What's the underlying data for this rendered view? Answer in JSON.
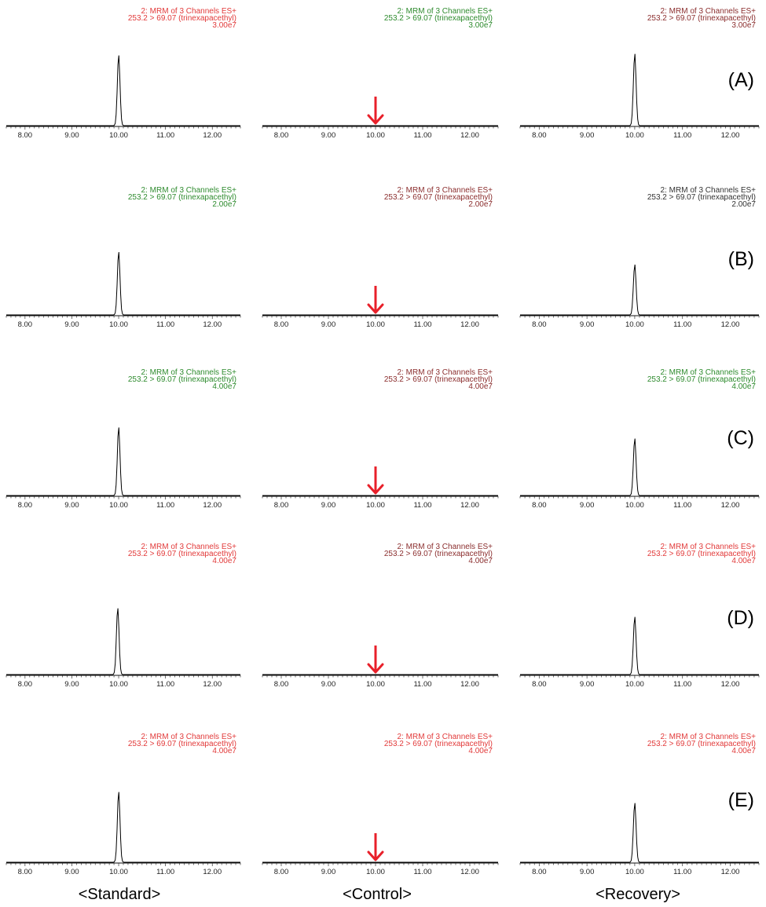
{
  "column_labels": [
    "<Standard>",
    "<Control>",
    "<Recovery>"
  ],
  "row_labels": [
    "(A)",
    "(B)",
    "(C)",
    "(D)",
    "(E)"
  ],
  "colors": {
    "red": "#e23a3a",
    "dark_red": "#8b2e2e",
    "green": "#2e8b2e",
    "arrow": "#e8202a",
    "trace": "#000000"
  },
  "chart_data": [
    {
      "type": "line",
      "row": "(A)",
      "column": "<Standard>",
      "header": [
        "2: MRM of 3 Channels ES+",
        "253.2 > 69.07 (trinexapacethyl)",
        "3.00e7"
      ],
      "header_color": "red",
      "xticks": [
        "8.00",
        "9.00",
        "10.00",
        "11.00",
        "12.00"
      ],
      "xlim": [
        7.6,
        12.6
      ],
      "peak": {
        "rt": 10.0,
        "rel_height": 0.95
      },
      "arrow": false
    },
    {
      "type": "line",
      "row": "(A)",
      "column": "<Control>",
      "header": [
        "2: MRM of 3 Channels ES+",
        "253.2 > 69.07 (trinexapacethyl)",
        "3.00e7"
      ],
      "header_color": "green",
      "xticks": [
        "8.00",
        "9.00",
        "10.00",
        "11.00",
        "12.00"
      ],
      "xlim": [
        7.6,
        12.6
      ],
      "peak": null,
      "arrow": true,
      "arrow_x": 10.0
    },
    {
      "type": "line",
      "row": "(A)",
      "column": "<Recovery>",
      "header": [
        "2: MRM of 3 Channels ES+",
        "253.2 > 69.07 (trinexapacethyl)",
        "3.00e7"
      ],
      "header_color": "dark_red",
      "xticks": [
        "8.00",
        "9.00",
        "10.00",
        "11.00",
        "12.00"
      ],
      "xlim": [
        7.6,
        12.6
      ],
      "peak": {
        "rt": 10.0,
        "rel_height": 0.97
      },
      "arrow": false
    },
    {
      "type": "line",
      "row": "(B)",
      "column": "<Standard>",
      "header": [
        "2: MRM of 3 Channels ES+",
        "253.2 > 69.07 (trinexapacethyl)",
        "2.00e7"
      ],
      "header_color": "green",
      "xticks": [
        "8.00",
        "9.00",
        "10.00",
        "11.00",
        "12.00"
      ],
      "xlim": [
        7.6,
        12.6
      ],
      "peak": {
        "rt": 10.0,
        "rel_height": 0.85
      },
      "arrow": false
    },
    {
      "type": "line",
      "row": "(B)",
      "column": "<Control>",
      "header": [
        "2: MRM of 3 Channels ES+",
        "253.2 > 69.07 (trinexapacethyl)",
        "2.00e7"
      ],
      "header_color": "dark_red",
      "xticks": [
        "8.00",
        "9.00",
        "10.00",
        "11.00",
        "12.00"
      ],
      "xlim": [
        7.6,
        12.6
      ],
      "peak": null,
      "arrow": true,
      "arrow_x": 10.0
    },
    {
      "type": "line",
      "row": "(B)",
      "column": "<Recovery>",
      "header": [
        "2: MRM of 3 Channels ES+",
        "253.2 > 69.07 (trinexapacethyl)",
        "2.00e7"
      ],
      "header_color": "dark",
      "xticks": [
        "8.00",
        "9.00",
        "10.00",
        "11.00",
        "12.00"
      ],
      "xlim": [
        7.6,
        12.6
      ],
      "peak": {
        "rt": 10.0,
        "rel_height": 0.68
      },
      "arrow": false
    },
    {
      "type": "line",
      "row": "(C)",
      "column": "<Standard>",
      "header": [
        "2: MRM of 3 Channels ES+",
        "253.2 > 69.07 (trinexapacethyl)",
        "4.00e7"
      ],
      "header_color": "green",
      "xticks": [
        "8.00",
        "9.00",
        "10.00",
        "11.00",
        "12.00"
      ],
      "xlim": [
        7.6,
        12.6
      ],
      "peak": {
        "rt": 10.0,
        "rel_height": 0.92
      },
      "arrow": false
    },
    {
      "type": "line",
      "row": "(C)",
      "column": "<Control>",
      "header": [
        "2: MRM of 3 Channels ES+",
        "253.2 > 69.07 (trinexapacethyl)",
        "4.00e7"
      ],
      "header_color": "dark_red",
      "xticks": [
        "8.00",
        "9.00",
        "10.00",
        "11.00",
        "12.00"
      ],
      "xlim": [
        7.6,
        12.6
      ],
      "peak": null,
      "arrow": true,
      "arrow_x": 10.0
    },
    {
      "type": "line",
      "row": "(C)",
      "column": "<Recovery>",
      "header": [
        "2: MRM of 3 Channels ES+",
        "253.2 > 69.07 (trinexapacethyl)",
        "4.00e7"
      ],
      "header_color": "green",
      "xticks": [
        "8.00",
        "9.00",
        "10.00",
        "11.00",
        "12.00"
      ],
      "xlim": [
        7.6,
        12.6
      ],
      "peak": {
        "rt": 10.0,
        "rel_height": 0.77
      },
      "arrow": false
    },
    {
      "type": "line",
      "row": "(D)",
      "column": "<Standard>",
      "header": [
        "2: MRM of 3 Channels ES+",
        "253.2 > 69.07 (trinexapacethyl)",
        "4.00e7"
      ],
      "header_color": "red",
      "xticks": [
        "8.00",
        "9.00",
        "10.00",
        "11.00",
        "12.00"
      ],
      "xlim": [
        7.6,
        12.6
      ],
      "peak": {
        "rt": 9.98,
        "rel_height": 0.9
      },
      "arrow": false
    },
    {
      "type": "line",
      "row": "(D)",
      "column": "<Control>",
      "header": [
        "2: MRM of 3 Channels ES+",
        "253.2 > 69.07 (trinexapacethyl)",
        "4.00e7"
      ],
      "header_color": "dark_red",
      "xticks": [
        "8.00",
        "9.00",
        "10.00",
        "11.00",
        "12.00"
      ],
      "xlim": [
        7.6,
        12.6
      ],
      "peak": null,
      "arrow": true,
      "arrow_x": 10.0
    },
    {
      "type": "line",
      "row": "(D)",
      "column": "<Recovery>",
      "header": [
        "2: MRM of 3 Channels ES+",
        "253.2 > 69.07 (trinexapacethyl)",
        "4.00e7"
      ],
      "header_color": "red",
      "xticks": [
        "8.00",
        "9.00",
        "10.00",
        "11.00",
        "12.00"
      ],
      "xlim": [
        7.6,
        12.6
      ],
      "peak": {
        "rt": 10.0,
        "rel_height": 0.78
      },
      "arrow": false
    },
    {
      "type": "line",
      "row": "(E)",
      "column": "<Standard>",
      "header": [
        "2: MRM of 3 Channels ES+",
        "253.2 > 69.07 (trinexapacethyl)",
        "4.00e7"
      ],
      "header_color": "red",
      "xticks": [
        "8.00",
        "9.00",
        "10.00",
        "11.00",
        "12.00"
      ],
      "xlim": [
        7.6,
        12.6
      ],
      "peak": {
        "rt": 10.0,
        "rel_height": 0.95
      },
      "arrow": false
    },
    {
      "type": "line",
      "row": "(E)",
      "column": "<Control>",
      "header": [
        "2: MRM of 3 Channels ES+",
        "253.2 > 69.07 (trinexapacethyl)",
        "4.00e7"
      ],
      "header_color": "red",
      "xticks": [
        "8.00",
        "9.00",
        "10.00",
        "11.00",
        "12.00"
      ],
      "xlim": [
        7.6,
        12.6
      ],
      "peak": null,
      "arrow": true,
      "arrow_x": 10.0
    },
    {
      "type": "line",
      "row": "(E)",
      "column": "<Recovery>",
      "header": [
        "2: MRM of 3 Channels ES+",
        "253.2 > 69.07 (trinexapacethyl)",
        "4.00e7"
      ],
      "header_color": "red",
      "xticks": [
        "8.00",
        "9.00",
        "10.00",
        "11.00",
        "12.00"
      ],
      "xlim": [
        7.6,
        12.6
      ],
      "peak": {
        "rt": 10.0,
        "rel_height": 0.8
      },
      "arrow": false
    }
  ]
}
